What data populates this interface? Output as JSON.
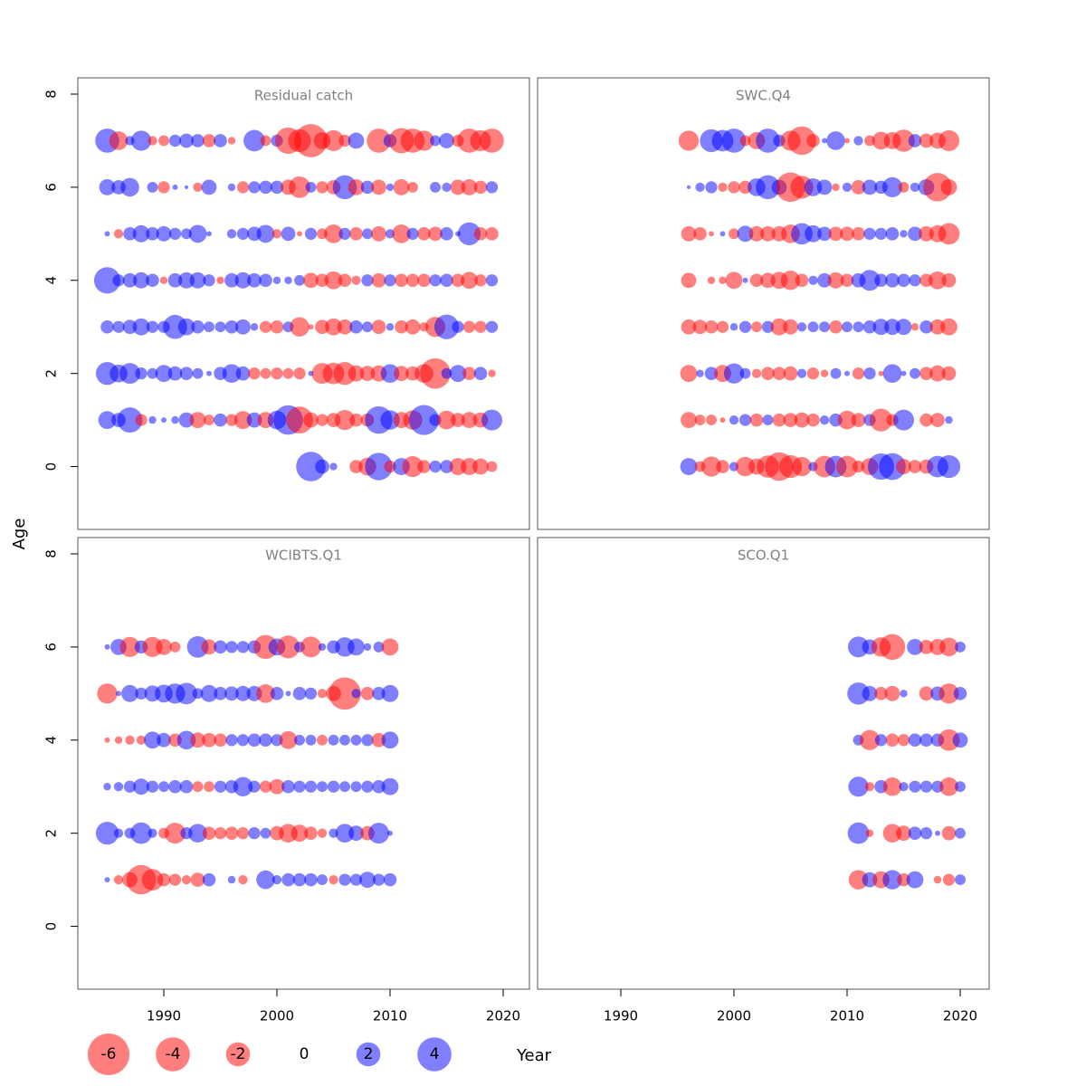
{
  "xlabel": "Year",
  "ylabel": "Age",
  "colors": {
    "positive": "#0000ff",
    "negative": "#ff0000"
  },
  "size_legend": [
    -6,
    -4,
    -2,
    0,
    2,
    4
  ],
  "chart_data": [
    {
      "type": "bubble",
      "title": "Residual catch",
      "x": [
        1985,
        1986,
        1987,
        1988,
        1989,
        1990,
        1991,
        1992,
        1993,
        1994,
        1995,
        1996,
        1997,
        1998,
        1999,
        2000,
        2001,
        2002,
        2003,
        2004,
        2005,
        2006,
        2007,
        2008,
        2009,
        2010,
        2011,
        2012,
        2013,
        2014,
        2015,
        2016,
        2017,
        2018,
        2019
      ],
      "y": [
        7,
        6,
        5,
        4,
        3,
        2,
        1,
        0
      ],
      "values": [
        [
          2.0,
          -1.2,
          0.3,
          1.4,
          -0.3,
          -0.4,
          0.5,
          0.7,
          0.6,
          -0.6,
          0.6,
          -0.2,
          null,
          1.6,
          -0.4,
          0.5,
          -2.4,
          -1.8,
          -3.8,
          -1.0,
          -1.5,
          -0.5,
          0.9,
          null,
          -2.0,
          0.6,
          -2.2,
          -2.0,
          -1.4,
          0.4,
          0.8,
          -0.5,
          -2.0,
          -1.5,
          -2.0
        ],
        [
          0.9,
          0.7,
          1.2,
          null,
          0.4,
          -0.5,
          0.1,
          0.05,
          -0.3,
          0.8,
          null,
          0.2,
          -0.5,
          0.5,
          0.6,
          0.6,
          -0.8,
          -1.6,
          0.4,
          -0.5,
          -0.7,
          2.0,
          -0.9,
          0.6,
          -0.8,
          0.2,
          -0.9,
          -0.4,
          null,
          0.4,
          0.3,
          -0.8,
          -0.9,
          -0.6,
          0.5
        ],
        [
          0.1,
          -0.3,
          0.6,
          1.0,
          0.6,
          0.8,
          0.5,
          0.4,
          1.1,
          0.1,
          null,
          0.3,
          0.5,
          0.7,
          1.1,
          -0.3,
          0.7,
          -0.1,
          0.5,
          -0.4,
          -1.2,
          0.5,
          -0.6,
          0.4,
          -0.8,
          0.3,
          -1.2,
          0.5,
          -0.6,
          -0.7,
          0.6,
          0.1,
          1.8,
          -0.6,
          -0.6
        ],
        [
          2.4,
          0.5,
          0.7,
          0.9,
          0.6,
          -0.2,
          0.7,
          0.9,
          0.9,
          0.5,
          -0.2,
          0.7,
          0.9,
          0.7,
          0.6,
          0.2,
          0.2,
          0.4,
          -0.8,
          -0.6,
          -1.1,
          -0.6,
          -0.3,
          0.5,
          -0.7,
          0.5,
          -0.6,
          -0.6,
          -0.6,
          0.5,
          0.6,
          -0.6,
          -1.0,
          -0.5,
          0.5
        ],
        [
          0.6,
          0.5,
          0.7,
          1.0,
          0.5,
          0.5,
          2.0,
          1.0,
          0.6,
          0.4,
          0.4,
          0.6,
          0.8,
          0.2,
          -0.5,
          -0.6,
          0.4,
          -1.3,
          -0.1,
          -0.7,
          -1.0,
          -0.8,
          0.6,
          0.4,
          -0.7,
          0.2,
          -0.6,
          -0.8,
          -0.3,
          -1.4,
          2.1,
          0.5,
          -0.5,
          -0.5,
          0.5
        ],
        [
          1.8,
          1.1,
          1.5,
          0.5,
          0.4,
          1.0,
          0.7,
          0.6,
          0.4,
          0.1,
          0.6,
          1.2,
          0.7,
          -0.5,
          -0.4,
          -0.5,
          -0.4,
          -0.5,
          0.1,
          -1.5,
          -1.6,
          -1.8,
          -0.9,
          -0.8,
          -0.9,
          1.2,
          -0.8,
          -0.7,
          -1.2,
          -3.2,
          0.4,
          1.0,
          -0.6,
          0.6,
          -0.2
        ],
        [
          1.1,
          0.7,
          2.2,
          -0.5,
          0.2,
          0.1,
          0.2,
          0.8,
          -0.9,
          -0.4,
          0.6,
          -0.5,
          -1.1,
          0.8,
          -0.9,
          1.2,
          3.0,
          -2.5,
          -0.8,
          -0.5,
          -0.7,
          -1.4,
          -0.6,
          -0.6,
          2.6,
          1.3,
          -0.9,
          -1.3,
          3.1,
          0.5,
          -1.2,
          -0.7,
          -0.9,
          -0.8,
          1.5
        ],
        [
          null,
          null,
          null,
          null,
          null,
          null,
          null,
          null,
          null,
          null,
          null,
          null,
          null,
          null,
          null,
          null,
          null,
          null,
          3.0,
          0.7,
          0.2,
          null,
          -0.6,
          -1.1,
          2.6,
          -0.5,
          1.0,
          -1.5,
          -0.6,
          0.5,
          0.6,
          -1.0,
          -1.0,
          -0.9,
          -0.4
        ]
      ],
      "xlim": [
        1982.4,
        2022.32
      ],
      "ylim": [
        -1.35,
        8.35
      ],
      "yticks": [
        0,
        2,
        4,
        6,
        8
      ]
    },
    {
      "type": "bubble",
      "title": "SWC.Q4",
      "x": [
        1996,
        1997,
        1998,
        1999,
        2000,
        2001,
        2002,
        2003,
        2004,
        2005,
        2006,
        2007,
        2008,
        2009,
        2010,
        2011,
        2012,
        2013,
        2014,
        2015,
        2016,
        2017,
        2018,
        2019
      ],
      "y": [
        7,
        6,
        5,
        4,
        3,
        2,
        1,
        0
      ],
      "values": [
        [
          -1.4,
          null,
          1.8,
          1.6,
          2.0,
          -0.4,
          -1.0,
          2.0,
          0.5,
          -1.4,
          -2.8,
          -0.6,
          0.1,
          1.2,
          -0.1,
          0.3,
          -0.4,
          -1.1,
          -1.0,
          -1.7,
          0.6,
          -0.7,
          -0.9,
          -1.5
        ],
        [
          0.05,
          0.3,
          0.5,
          -0.3,
          -0.5,
          -0.6,
          1.1,
          2.0,
          0.8,
          -3.0,
          -1.8,
          1.1,
          0.8,
          -0.2,
          0.3,
          -0.7,
          0.8,
          0.6,
          1.4,
          -0.4,
          0.3,
          0.9,
          -2.8,
          -0.9
        ],
        [
          -0.8,
          -0.6,
          -0.1,
          0.1,
          -0.4,
          0.9,
          -0.8,
          -0.8,
          -0.8,
          -1.2,
          1.6,
          1.0,
          0.7,
          -0.7,
          -0.7,
          -0.6,
          0.5,
          0.5,
          0.6,
          0.2,
          0.7,
          -0.8,
          -1.0,
          -1.6
        ],
        [
          -0.8,
          null,
          -0.2,
          -0.2,
          -1.0,
          0.1,
          -0.6,
          -0.8,
          -1.0,
          -1.3,
          -0.6,
          0.3,
          0.7,
          -0.9,
          -0.6,
          0.7,
          1.5,
          0.6,
          0.7,
          0.6,
          0.5,
          -0.6,
          -1.1,
          -0.7
        ],
        [
          -0.8,
          -0.7,
          -0.6,
          -0.5,
          0.2,
          0.5,
          -0.4,
          0.5,
          -1.0,
          -0.8,
          0.3,
          0.4,
          0.4,
          -0.6,
          0.4,
          0.4,
          0.6,
          0.9,
          0.9,
          0.9,
          -0.2,
          0.6,
          -0.8,
          -1.0
        ],
        [
          -1.0,
          0.2,
          0.6,
          -1.0,
          1.4,
          0.4,
          -0.3,
          -0.6,
          -0.6,
          -0.7,
          0.3,
          -0.5,
          -0.2,
          0.4,
          0.1,
          -0.5,
          0.5,
          -0.1,
          1.2,
          0.1,
          0.4,
          -0.6,
          -0.9,
          -0.7
        ],
        [
          -0.9,
          -0.4,
          -0.4,
          -0.1,
          0.3,
          0.5,
          -0.6,
          0.4,
          -0.6,
          -0.7,
          -0.8,
          -0.6,
          0.3,
          0.6,
          -1.2,
          -0.7,
          0.5,
          -1.8,
          -0.5,
          1.5,
          null,
          -0.6,
          -0.7,
          0.2
        ],
        [
          1.0,
          -0.4,
          -1.4,
          -0.6,
          0.3,
          -1.3,
          -0.9,
          -1.7,
          -2.8,
          -1.8,
          -1.3,
          0.3,
          -1.6,
          1.6,
          -1.6,
          -0.5,
          -1.0,
          2.4,
          2.5,
          -0.8,
          -0.6,
          -0.7,
          1.6,
          1.8
        ]
      ],
      "xlim": [
        1982.64,
        2022.56
      ],
      "ylim": [
        -1.35,
        8.35
      ]
    },
    {
      "type": "bubble",
      "title": "WCIBTS.Q1",
      "x": [
        1985,
        1986,
        1987,
        1988,
        1989,
        1990,
        1991,
        1992,
        1993,
        1994,
        1995,
        1996,
        1997,
        1998,
        1999,
        2000,
        2001,
        2002,
        2003,
        2004,
        2005,
        2006,
        2007,
        2008,
        2009,
        2010
      ],
      "y": [
        6,
        5,
        4,
        3,
        2,
        1
      ],
      "values": [
        [
          0.1,
          0.9,
          -1.4,
          0.6,
          -1.4,
          -0.9,
          -0.4,
          null,
          1.6,
          -0.8,
          0.6,
          0.5,
          0.5,
          0.6,
          -2.0,
          1.0,
          -1.8,
          0.4,
          -1.5,
          0.2,
          0.6,
          1.3,
          1.0,
          0.2,
          0.4,
          -1.0
        ],
        [
          -1.4,
          0.1,
          1.0,
          0.5,
          0.9,
          1.1,
          1.4,
          1.6,
          0.4,
          1.0,
          0.6,
          0.7,
          0.8,
          0.8,
          -1.2,
          0.6,
          0.1,
          0.6,
          0.5,
          -0.3,
          -0.8,
          -3.6,
          0.3,
          -0.6,
          0.6,
          1.0
        ],
        [
          -0.1,
          -0.2,
          -0.3,
          -0.3,
          1.0,
          0.7,
          -0.6,
          1.2,
          -0.8,
          -0.7,
          -0.6,
          0.5,
          0.5,
          0.6,
          0.6,
          0.5,
          -1.1,
          0.4,
          0.4,
          -0.4,
          0.4,
          0.4,
          0.4,
          0.5,
          -0.7,
          1.0
        ],
        [
          0.2,
          0.3,
          0.5,
          0.9,
          0.5,
          0.4,
          0.6,
          0.6,
          -0.4,
          -0.4,
          0.5,
          0.6,
          1.3,
          0.5,
          -0.5,
          -0.8,
          0.6,
          0.5,
          0.5,
          0.4,
          0.5,
          0.4,
          0.4,
          0.5,
          0.6,
          1.0
        ],
        [
          1.8,
          0.3,
          0.4,
          1.6,
          0.3,
          -0.4,
          -1.5,
          0.5,
          1.2,
          -0.6,
          -0.5,
          -0.6,
          -0.5,
          0.5,
          0.4,
          -0.7,
          -1.2,
          -1.0,
          -0.6,
          -0.3,
          0.3,
          1.2,
          0.8,
          -0.7,
          1.5,
          0.1
        ],
        [
          0.1,
          -0.3,
          -0.8,
          -3.0,
          -1.6,
          -0.6,
          -0.5,
          -0.3,
          -0.7,
          0.6,
          null,
          0.2,
          -0.3,
          null,
          1.2,
          0.3,
          0.6,
          0.6,
          0.6,
          0.4,
          -0.3,
          0.5,
          0.5,
          0.9,
          0.5,
          0.6
        ]
      ],
      "xlim": [
        1982.4,
        2022.32
      ],
      "ylim": [
        -1.35,
        8.35
      ],
      "xticks": [
        1990,
        2000,
        2010,
        2020
      ],
      "yticks": [
        0,
        2,
        4,
        6,
        8
      ]
    },
    {
      "type": "bubble",
      "title": "SCO.Q1",
      "x": [
        2011,
        2012,
        2013,
        2014,
        2015,
        2016,
        2017,
        2018,
        2019,
        2020
      ],
      "y": [
        6,
        5,
        4,
        3,
        2,
        1
      ],
      "values": [
        [
          1.5,
          0.8,
          -1.3,
          -2.3,
          null,
          0.9,
          -0.7,
          -0.9,
          -1.2,
          0.4
        ],
        [
          1.7,
          0.8,
          -0.6,
          -0.8,
          0.2,
          null,
          -0.7,
          0.7,
          -1.4,
          0.6
        ],
        [
          0.4,
          -1.4,
          0.5,
          -0.6,
          -0.5,
          0.6,
          0.6,
          0.6,
          -1.6,
          0.8
        ],
        [
          1.4,
          -0.3,
          0.6,
          -1.2,
          0.3,
          0.5,
          0.5,
          0.5,
          -1.2,
          0.4
        ],
        [
          1.6,
          -0.2,
          null,
          -1.2,
          -0.8,
          0.6,
          0.5,
          0.1,
          -0.7,
          0.4
        ],
        [
          -1.3,
          0.8,
          -1.0,
          1.3,
          -0.6,
          1.0,
          null,
          -0.2,
          -0.5,
          0.4
        ]
      ],
      "xlim": [
        1982.64,
        2022.56
      ],
      "ylim": [
        -1.35,
        8.35
      ],
      "xticks": [
        1990,
        2000,
        2010,
        2020
      ]
    }
  ]
}
